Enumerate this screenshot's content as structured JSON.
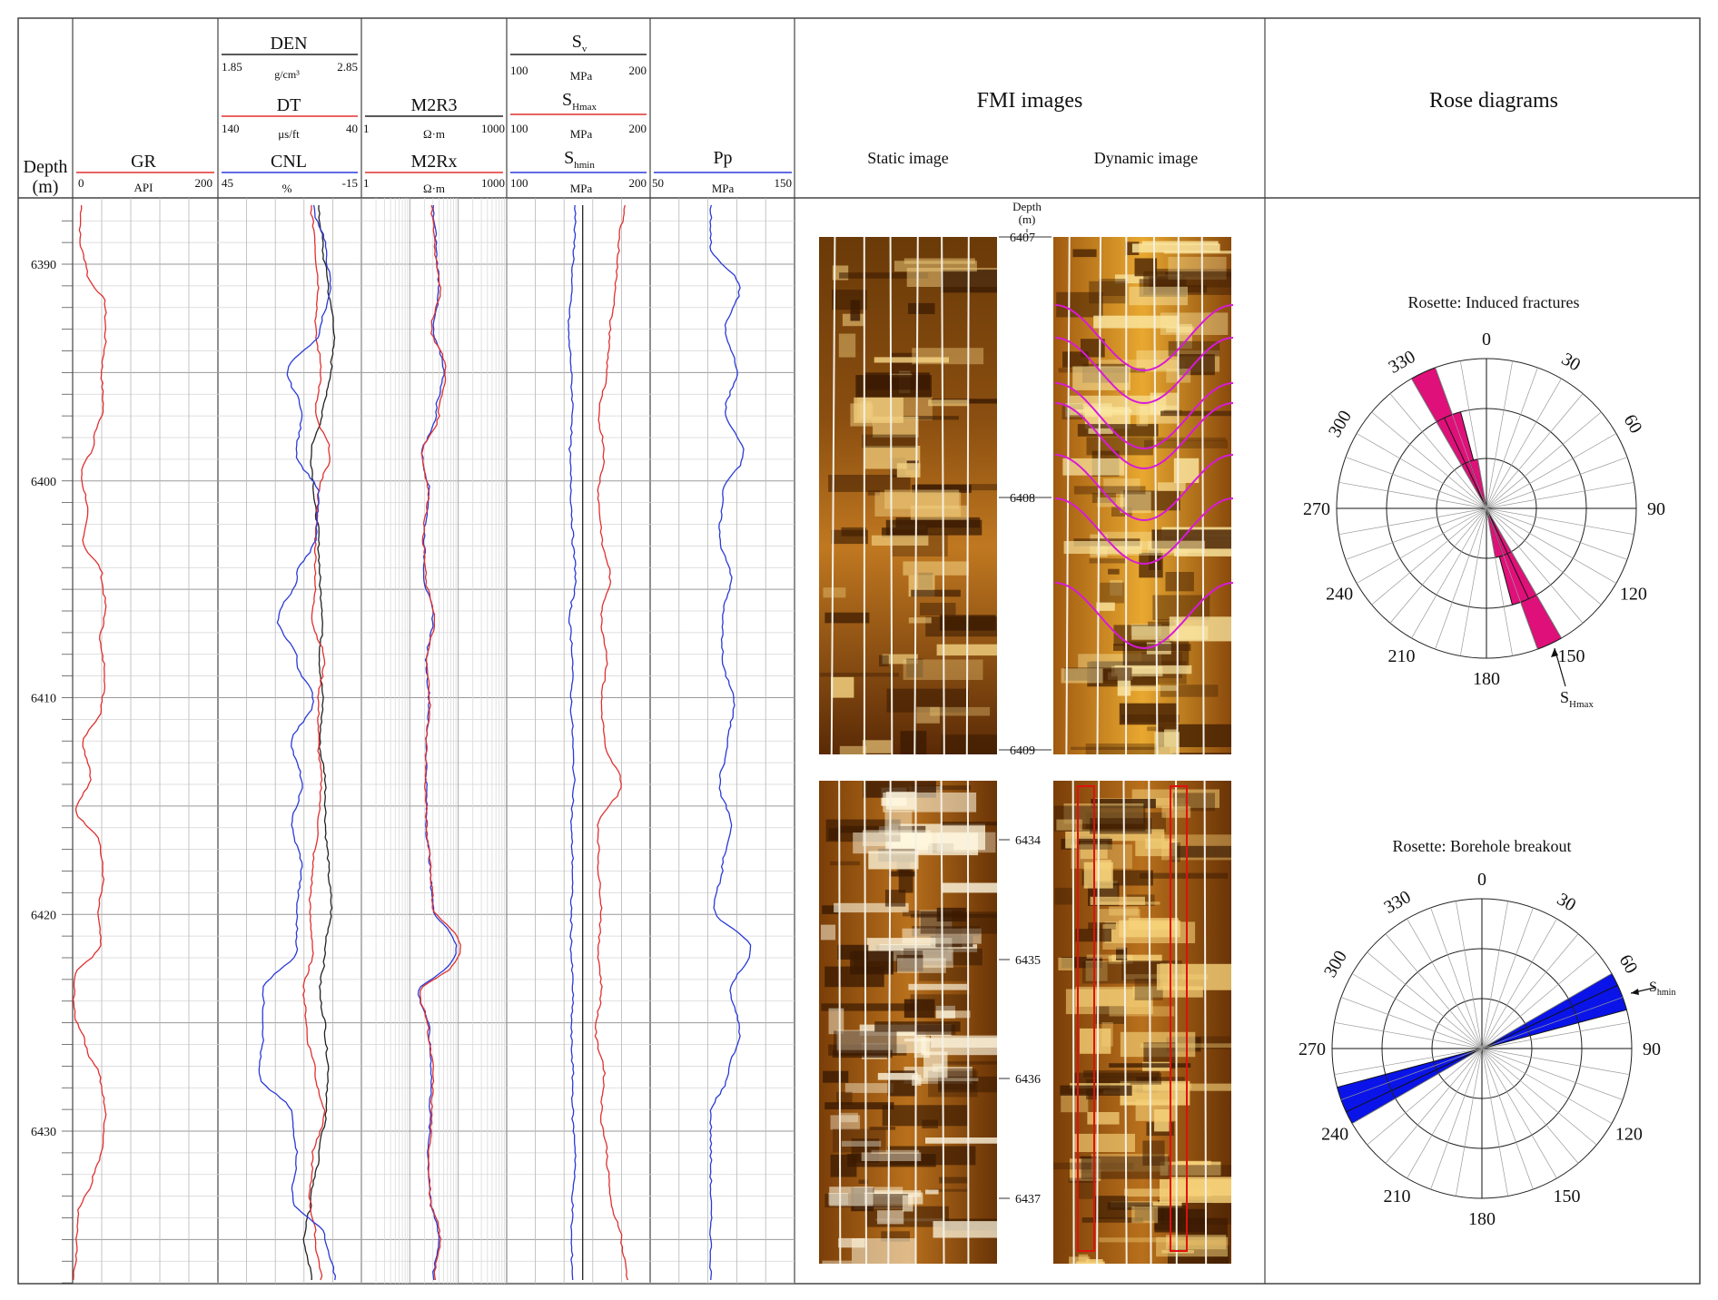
{
  "depth_track": {
    "title": "Depth",
    "unit": "(m)"
  },
  "tracks": {
    "gr": {
      "name": "GR",
      "unit": "API",
      "min": "0",
      "max": "200",
      "color": "#e03030"
    },
    "den": {
      "name": "DEN",
      "unit": "g/cm³",
      "min": "1.85",
      "max": "2.85",
      "color": "#222222"
    },
    "dt": {
      "name": "DT",
      "unit": "μs/ft",
      "min": "140",
      "max": "40",
      "color": "#e03030"
    },
    "cnl": {
      "name": "CNL",
      "unit": "%",
      "min": "45",
      "max": "-15",
      "color": "#2a3ad8"
    },
    "m2r3": {
      "name": "M2R3",
      "unit": "Ω·m",
      "min": "1",
      "max": "1000",
      "color": "#222222"
    },
    "m2rx": {
      "name": "M2Rx",
      "unit": "Ω·m",
      "min": "1",
      "max": "1000",
      "color": "#e03030"
    },
    "sv": {
      "name": "S",
      "sub": "v",
      "unit": "MPa",
      "min": "100",
      "max": "200",
      "color": "#222222"
    },
    "shmax": {
      "name": "S",
      "sub": "Hmax",
      "unit": "MPa",
      "min": "100",
      "max": "200",
      "color": "#e03030"
    },
    "shmin": {
      "name": "S",
      "sub": "hmin",
      "unit": "MPa",
      "min": "100",
      "max": "200",
      "color": "#2a3ad8"
    },
    "pp": {
      "name": "Pp",
      "unit": "MPa",
      "min": "50",
      "max": "150",
      "color": "#2a3ad8"
    }
  },
  "fmi": {
    "title": "FMI images",
    "static_label": "Static image",
    "dynamic_label": "Dynamic image",
    "depth_title": "Depth",
    "depth_unit": "(m)",
    "upper_depths": [
      "6407",
      "6408",
      "6409"
    ],
    "lower_depths": [
      "6434",
      "6435",
      "6436",
      "6437"
    ]
  },
  "rose": {
    "title": "Rose diagrams",
    "induced_title": "Rosette: Induced fractures",
    "breakout_title": "Rosette: Borehole breakout",
    "angle_labels": [
      "0",
      "30",
      "60",
      "90",
      "120",
      "150",
      "180",
      "210",
      "240",
      "270",
      "300",
      "330"
    ],
    "shmax_label": "S",
    "shmax_sub": "Hmax",
    "shmin_label": "S",
    "shmin_sub": "hmin",
    "induced_color": "#e0107a",
    "breakout_color": "#0a14e8"
  },
  "chart_data": {
    "type": "line",
    "depth_range": [
      6388,
      6437
    ],
    "depth_ticks": [
      "6390",
      "6400",
      "6410",
      "6420",
      "6430"
    ],
    "series": [
      {
        "name": "GR",
        "x": [
          12,
          10,
          20,
          45,
          45,
          40,
          42,
          30,
          12,
          20,
          15,
          40,
          45,
          38,
          45,
          40,
          15,
          25,
          5,
          38,
          42,
          35,
          38,
          2,
          2,
          18,
          38,
          45,
          42,
          28,
          8,
          5,
          2
        ]
      },
      {
        "name": "DEN",
        "x": [
          2.55,
          2.58,
          2.62,
          2.66,
          2.64,
          2.58,
          2.5,
          2.52,
          2.55,
          2.56,
          2.58,
          2.56,
          2.58,
          2.56,
          2.6,
          2.6,
          2.62,
          2.64,
          2.6,
          2.56,
          2.6,
          2.62,
          2.6,
          2.55,
          2.5,
          2.45,
          2.5
        ]
      },
      {
        "name": "DT",
        "x": [
          75,
          72,
          70,
          72,
          68,
          72,
          62,
          70,
          72,
          72,
          74,
          66,
          70,
          70,
          68,
          70,
          74,
          76,
          74,
          80,
          78,
          72,
          66,
          74,
          76,
          72,
          68
        ]
      },
      {
        "name": "CNL",
        "x": [
          5,
          0,
          -2,
          2,
          16,
          10,
          12,
          3,
          4,
          12,
          20,
          12,
          5,
          14,
          10,
          14,
          10,
          12,
          12,
          26,
          26,
          28,
          14,
          12,
          14,
          0,
          -4
        ]
      },
      {
        "name": "M2R3",
        "x": [
          30,
          35,
          40,
          30,
          50,
          35,
          18,
          25,
          20,
          20,
          30,
          22,
          25,
          22,
          22,
          22,
          26,
          30,
          90,
          15,
          25,
          28,
          26,
          24,
          26,
          40,
          30
        ]
      },
      {
        "name": "M2Rx",
        "x": [
          28,
          33,
          42,
          28,
          55,
          40,
          18,
          24,
          19,
          21,
          32,
          22,
          26,
          22,
          21,
          22,
          27,
          30,
          110,
          16,
          24,
          30,
          28,
          25,
          26,
          42,
          32
        ]
      },
      {
        "name": "Sv",
        "x": [
          153,
          153,
          153,
          153,
          153,
          153,
          153,
          153,
          153,
          153,
          153,
          153,
          153,
          153,
          153,
          153,
          153,
          153,
          153,
          153,
          153,
          153,
          153,
          153,
          153,
          153,
          153
        ]
      },
      {
        "name": "SHmax",
        "x": [
          182,
          178,
          176,
          172,
          170,
          164,
          168,
          164,
          166,
          172,
          166,
          170,
          166,
          168,
          180,
          164,
          164,
          166,
          164,
          166,
          162,
          168,
          166,
          170,
          172,
          180,
          184
        ]
      },
      {
        "name": "Shmin",
        "x": [
          148,
          147,
          145,
          143,
          145,
          146,
          144,
          145,
          146,
          148,
          144,
          146,
          145,
          146,
          147,
          145,
          146,
          145,
          145,
          146,
          145,
          146,
          146,
          148,
          146,
          145,
          146
        ]
      },
      {
        "name": "Pp",
        "x": [
          92,
          92,
          112,
          102,
          110,
          102,
          115,
          100,
          98,
          106,
          100,
          100,
          108,
          104,
          98,
          106,
          100,
          94,
          120,
          106,
          112,
          104,
          92,
          92,
          92,
          92,
          92
        ]
      }
    ],
    "rose_induced": {
      "bins_deg": [
        150,
        155,
        160,
        330,
        335,
        340
      ],
      "counts": [
        3,
        2,
        1,
        3,
        2,
        1
      ]
    },
    "rose_breakout": {
      "bins_deg": [
        60,
        65,
        240,
        245
      ],
      "counts": [
        3,
        3,
        3,
        3
      ]
    }
  }
}
